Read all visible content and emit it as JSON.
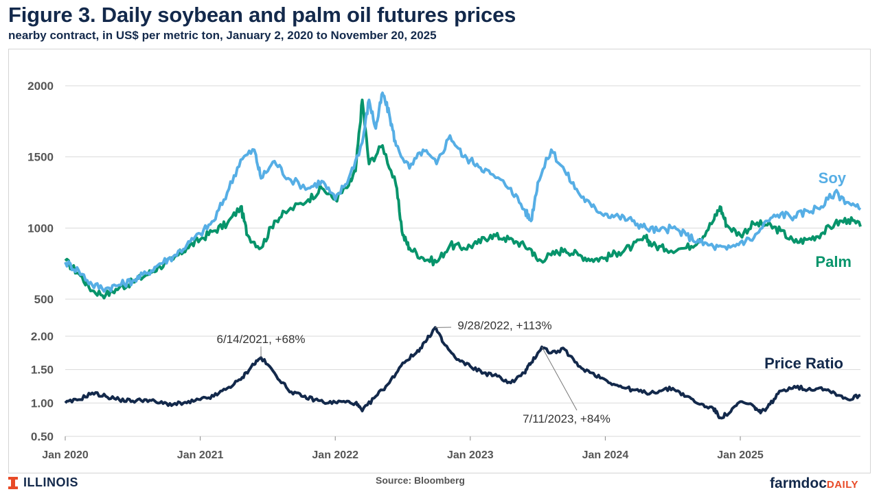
{
  "header": {
    "title": "Figure 3. Daily soybean and palm oil futures prices",
    "subtitle": "nearby contract, in US$ per metric ton, January 2, 2020 to November 20, 2025"
  },
  "footer": {
    "logo_text": "ILLINOIS",
    "source": "Source: Bloomberg",
    "brand_main": "farmdoc",
    "brand_sub": "DAILY"
  },
  "colors": {
    "soy": "#56aee5",
    "palm": "#07946b",
    "ratio": "#13294b",
    "grid": "#d9d9d9",
    "axis_text": "#555555"
  },
  "chart_data": [
    {
      "type": "line",
      "title": "Daily soybean and palm oil futures prices",
      "ylabel": "US$ per metric ton",
      "ylim": [
        500,
        2000
      ],
      "yticks": [
        500,
        1000,
        1500,
        2000
      ],
      "ytick_labels": [
        "500",
        "1000",
        "1500",
        "2000"
      ],
      "grid": true,
      "series": [
        {
          "name": "Soy",
          "label": "Soy",
          "points": [
            [
              2020.0,
              760
            ],
            [
              2020.1,
              700
            ],
            [
              2020.2,
              600
            ],
            [
              2020.3,
              575
            ],
            [
              2020.4,
              600
            ],
            [
              2020.5,
              630
            ],
            [
              2020.6,
              680
            ],
            [
              2020.7,
              750
            ],
            [
              2020.8,
              800
            ],
            [
              2020.9,
              880
            ],
            [
              2021.0,
              960
            ],
            [
              2021.1,
              1050
            ],
            [
              2021.2,
              1250
            ],
            [
              2021.3,
              1480
            ],
            [
              2021.4,
              1550
            ],
            [
              2021.45,
              1350
            ],
            [
              2021.55,
              1470
            ],
            [
              2021.65,
              1350
            ],
            [
              2021.8,
              1280
            ],
            [
              2021.9,
              1330
            ],
            [
              2022.0,
              1200
            ],
            [
              2022.1,
              1350
            ],
            [
              2022.2,
              1600
            ],
            [
              2022.25,
              1900
            ],
            [
              2022.3,
              1700
            ],
            [
              2022.35,
              1950
            ],
            [
              2022.4,
              1800
            ],
            [
              2022.45,
              1580
            ],
            [
              2022.55,
              1420
            ],
            [
              2022.65,
              1550
            ],
            [
              2022.75,
              1450
            ],
            [
              2022.85,
              1650
            ],
            [
              2022.95,
              1500
            ],
            [
              2023.05,
              1450
            ],
            [
              2023.15,
              1380
            ],
            [
              2023.3,
              1280
            ],
            [
              2023.4,
              1130
            ],
            [
              2023.45,
              1050
            ],
            [
              2023.5,
              1320
            ],
            [
              2023.6,
              1550
            ],
            [
              2023.7,
              1400
            ],
            [
              2023.8,
              1250
            ],
            [
              2023.9,
              1150
            ],
            [
              2024.0,
              1100
            ],
            [
              2024.1,
              1080
            ],
            [
              2024.2,
              1050
            ],
            [
              2024.3,
              1000
            ],
            [
              2024.4,
              980
            ],
            [
              2024.5,
              1000
            ],
            [
              2024.6,
              950
            ],
            [
              2024.7,
              900
            ],
            [
              2024.8,
              870
            ],
            [
              2024.9,
              850
            ],
            [
              2025.0,
              900
            ],
            [
              2025.1,
              930
            ],
            [
              2025.2,
              1050
            ],
            [
              2025.3,
              1100
            ],
            [
              2025.4,
              1080
            ],
            [
              2025.5,
              1120
            ],
            [
              2025.6,
              1150
            ],
            [
              2025.7,
              1250
            ],
            [
              2025.8,
              1180
            ],
            [
              2025.89,
              1130
            ]
          ]
        },
        {
          "name": "Palm",
          "label": "Palm",
          "points": [
            [
              2020.0,
              770
            ],
            [
              2020.1,
              680
            ],
            [
              2020.2,
              560
            ],
            [
              2020.3,
              530
            ],
            [
              2020.4,
              580
            ],
            [
              2020.5,
              620
            ],
            [
              2020.6,
              670
            ],
            [
              2020.7,
              730
            ],
            [
              2020.8,
              780
            ],
            [
              2020.9,
              860
            ],
            [
              2021.0,
              920
            ],
            [
              2021.1,
              980
            ],
            [
              2021.2,
              1030
            ],
            [
              2021.3,
              1150
            ],
            [
              2021.35,
              950
            ],
            [
              2021.45,
              860
            ],
            [
              2021.55,
              1050
            ],
            [
              2021.65,
              1120
            ],
            [
              2021.8,
              1200
            ],
            [
              2021.9,
              1280
            ],
            [
              2022.0,
              1200
            ],
            [
              2022.1,
              1300
            ],
            [
              2022.15,
              1400
            ],
            [
              2022.2,
              1900
            ],
            [
              2022.25,
              1450
            ],
            [
              2022.35,
              1580
            ],
            [
              2022.45,
              1300
            ],
            [
              2022.5,
              950
            ],
            [
              2022.55,
              860
            ],
            [
              2022.65,
              790
            ],
            [
              2022.75,
              760
            ],
            [
              2022.85,
              880
            ],
            [
              2022.95,
              860
            ],
            [
              2023.05,
              890
            ],
            [
              2023.15,
              950
            ],
            [
              2023.25,
              930
            ],
            [
              2023.35,
              900
            ],
            [
              2023.45,
              850
            ],
            [
              2023.5,
              770
            ],
            [
              2023.6,
              810
            ],
            [
              2023.7,
              850
            ],
            [
              2023.8,
              810
            ],
            [
              2023.9,
              780
            ],
            [
              2024.0,
              790
            ],
            [
              2024.1,
              830
            ],
            [
              2024.2,
              870
            ],
            [
              2024.3,
              930
            ],
            [
              2024.35,
              880
            ],
            [
              2024.45,
              850
            ],
            [
              2024.6,
              860
            ],
            [
              2024.7,
              920
            ],
            [
              2024.8,
              1050
            ],
            [
              2024.85,
              1150
            ],
            [
              2024.9,
              1020
            ],
            [
              2025.0,
              950
            ],
            [
              2025.1,
              1030
            ],
            [
              2025.2,
              1020
            ],
            [
              2025.3,
              980
            ],
            [
              2025.4,
              900
            ],
            [
              2025.5,
              920
            ],
            [
              2025.6,
              960
            ],
            [
              2025.7,
              1030
            ],
            [
              2025.8,
              1060
            ],
            [
              2025.89,
              1010
            ]
          ]
        }
      ]
    },
    {
      "type": "line",
      "title": "Price Ratio",
      "ylim": [
        0.5,
        2.0
      ],
      "yticks": [
        0.5,
        1.0,
        1.5,
        2.0
      ],
      "ytick_labels": [
        "0.50",
        "1.00",
        "1.50",
        "2.00"
      ],
      "grid": true,
      "xticks": [
        2020,
        2021,
        2022,
        2023,
        2024,
        2025
      ],
      "xtick_labels": [
        "Jan 2020",
        "Jan 2021",
        "Jan 2022",
        "Jan 2023",
        "Jan 2024",
        "Jan 2025"
      ],
      "series": [
        {
          "name": "Price Ratio",
          "label": "Price Ratio",
          "points": [
            [
              2020.0,
              1.0
            ],
            [
              2020.1,
              1.05
            ],
            [
              2020.2,
              1.15
            ],
            [
              2020.3,
              1.1
            ],
            [
              2020.4,
              1.05
            ],
            [
              2020.5,
              1.03
            ],
            [
              2020.6,
              1.05
            ],
            [
              2020.7,
              1.0
            ],
            [
              2020.8,
              0.98
            ],
            [
              2020.9,
              1.0
            ],
            [
              2021.0,
              1.05
            ],
            [
              2021.1,
              1.1
            ],
            [
              2021.2,
              1.22
            ],
            [
              2021.3,
              1.35
            ],
            [
              2021.38,
              1.55
            ],
            [
              2021.45,
              1.68
            ],
            [
              2021.55,
              1.45
            ],
            [
              2021.65,
              1.2
            ],
            [
              2021.75,
              1.1
            ],
            [
              2021.85,
              1.05
            ],
            [
              2021.95,
              1.0
            ],
            [
              2022.05,
              1.02
            ],
            [
              2022.15,
              1.0
            ],
            [
              2022.2,
              0.88
            ],
            [
              2022.3,
              1.1
            ],
            [
              2022.4,
              1.3
            ],
            [
              2022.5,
              1.6
            ],
            [
              2022.6,
              1.75
            ],
            [
              2022.68,
              1.95
            ],
            [
              2022.74,
              2.13
            ],
            [
              2022.8,
              1.9
            ],
            [
              2022.9,
              1.65
            ],
            [
              2023.0,
              1.55
            ],
            [
              2023.1,
              1.45
            ],
            [
              2023.2,
              1.4
            ],
            [
              2023.3,
              1.3
            ],
            [
              2023.4,
              1.45
            ],
            [
              2023.45,
              1.6
            ],
            [
              2023.53,
              1.84
            ],
            [
              2023.6,
              1.75
            ],
            [
              2023.7,
              1.8
            ],
            [
              2023.8,
              1.55
            ],
            [
              2023.9,
              1.45
            ],
            [
              2024.0,
              1.35
            ],
            [
              2024.1,
              1.25
            ],
            [
              2024.2,
              1.2
            ],
            [
              2024.3,
              1.15
            ],
            [
              2024.4,
              1.18
            ],
            [
              2024.5,
              1.22
            ],
            [
              2024.6,
              1.1
            ],
            [
              2024.7,
              0.98
            ],
            [
              2024.8,
              0.92
            ],
            [
              2024.85,
              0.78
            ],
            [
              2024.92,
              0.85
            ],
            [
              2025.0,
              1.02
            ],
            [
              2025.1,
              0.95
            ],
            [
              2025.15,
              0.85
            ],
            [
              2025.22,
              0.98
            ],
            [
              2025.3,
              1.18
            ],
            [
              2025.4,
              1.25
            ],
            [
              2025.5,
              1.2
            ],
            [
              2025.6,
              1.23
            ],
            [
              2025.7,
              1.15
            ],
            [
              2025.8,
              1.05
            ],
            [
              2025.89,
              1.12
            ]
          ]
        }
      ],
      "annotations": [
        {
          "label": "6/14/2021, +68%",
          "x": 2021.45,
          "y": 1.68
        },
        {
          "label": "9/28/2022, +113%",
          "x": 2022.74,
          "y": 2.13
        },
        {
          "label": "7/11/2023, +84%",
          "x": 2023.53,
          "y": 1.84
        }
      ]
    }
  ]
}
